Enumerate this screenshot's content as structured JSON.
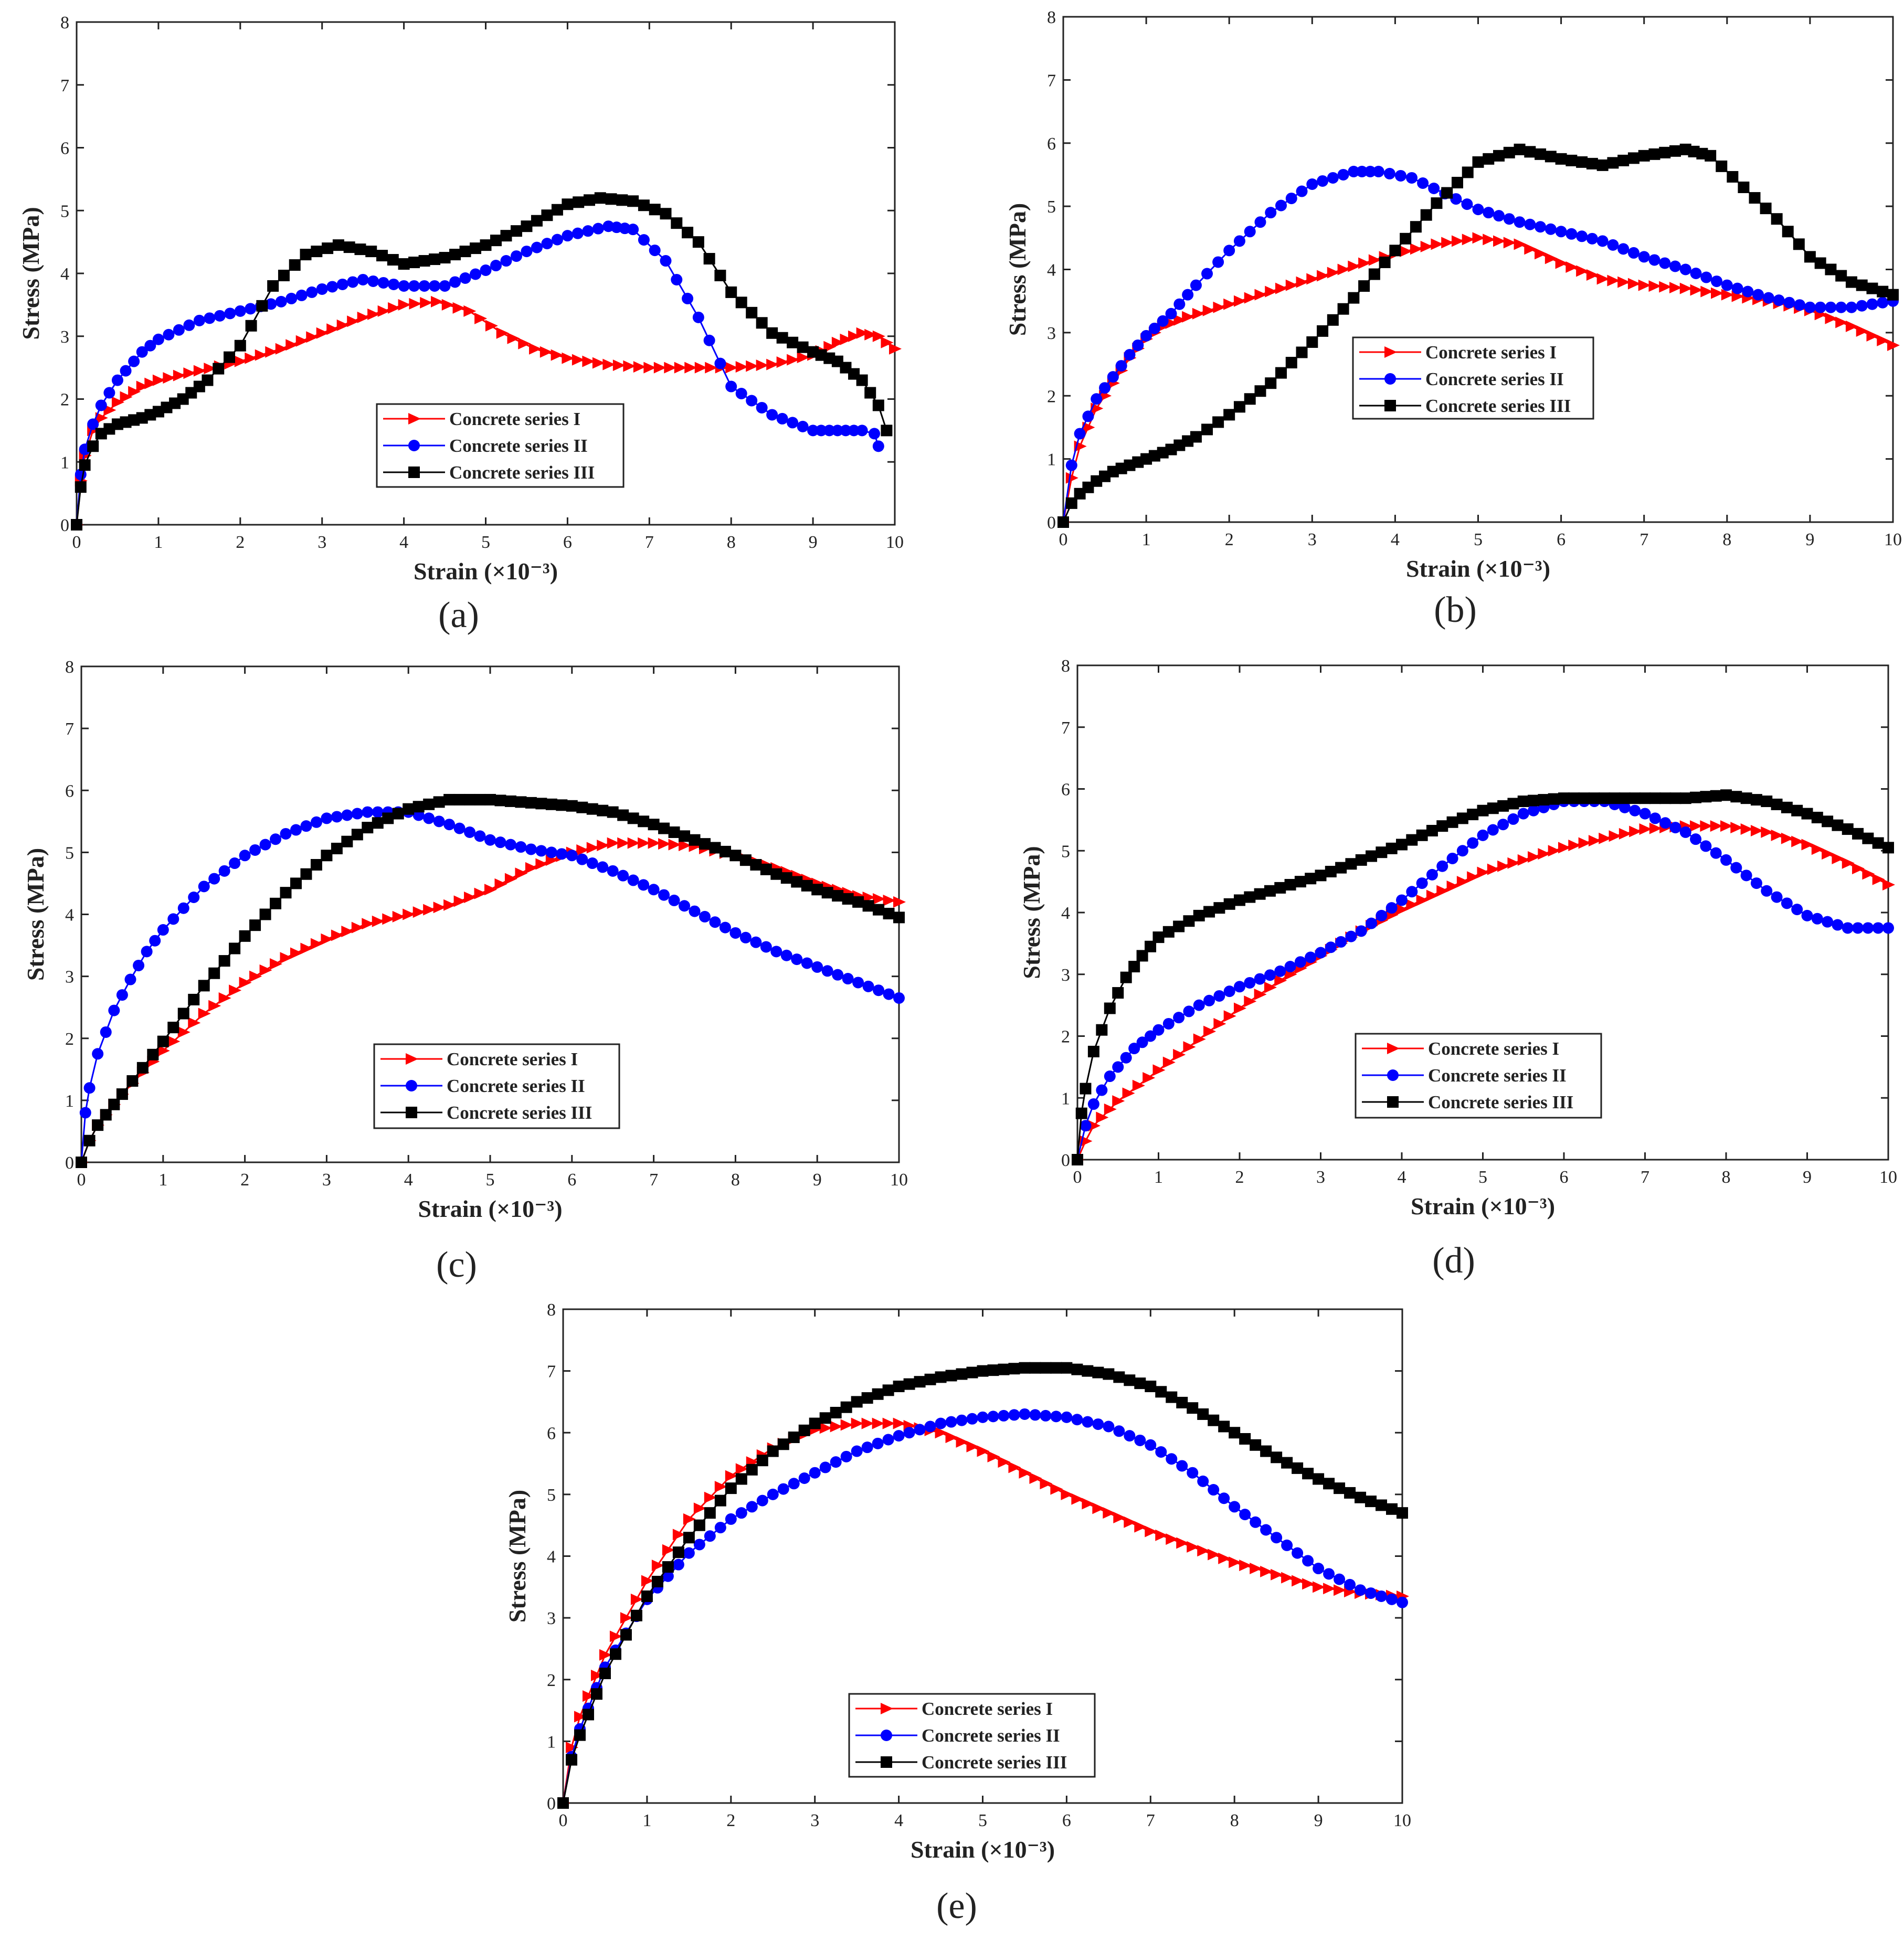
{
  "figure": {
    "panels": [
      "(a)",
      "(b)",
      "(c)",
      "(d)",
      "(e)"
    ]
  },
  "chart_data": [
    {
      "type": "line",
      "panel": "(a)",
      "xlabel": "Strain (×10⁻³)",
      "ylabel": "Stress (MPa)",
      "xlim": [
        0,
        10
      ],
      "ylim": [
        0,
        8
      ],
      "xticks": [
        0,
        1,
        2,
        3,
        4,
        5,
        6,
        7,
        8,
        9,
        10
      ],
      "yticks": [
        0,
        1,
        2,
        3,
        4,
        5,
        6,
        7,
        8
      ],
      "grid": false,
      "legend_position": "bottom-center",
      "series": [
        {
          "name": "Concrete series I",
          "color": "#ff0000",
          "marker": "triangle-right",
          "x": [
            0,
            0.05,
            0.1,
            0.2,
            0.3,
            0.5,
            0.8,
            1,
            1.5,
            2,
            2.5,
            3,
            3.5,
            4,
            4.4,
            4.8,
            5.2,
            5.6,
            6,
            6.5,
            7,
            7.5,
            8,
            8.5,
            9,
            9.3,
            9.6,
            9.8,
            10
          ],
          "y": [
            0,
            0.7,
            1.1,
            1.5,
            1.7,
            1.95,
            2.2,
            2.3,
            2.45,
            2.6,
            2.8,
            3.05,
            3.3,
            3.5,
            3.55,
            3.4,
            3.05,
            2.8,
            2.65,
            2.55,
            2.5,
            2.5,
            2.5,
            2.55,
            2.7,
            2.9,
            3.05,
            3.0,
            2.8
          ]
        },
        {
          "name": "Concrete series II",
          "color": "#0000ff",
          "marker": "circle",
          "x": [
            0,
            0.05,
            0.1,
            0.2,
            0.3,
            0.5,
            0.8,
            1,
            1.5,
            2,
            2.5,
            3,
            3.5,
            4,
            4.5,
            5,
            5.5,
            6,
            6.5,
            6.8,
            7.2,
            7.6,
            8,
            8.5,
            9,
            9.3,
            9.6,
            9.75,
            9.8
          ],
          "y": [
            0,
            0.8,
            1.2,
            1.6,
            1.9,
            2.3,
            2.75,
            2.95,
            3.25,
            3.4,
            3.55,
            3.75,
            3.9,
            3.8,
            3.8,
            4.05,
            4.35,
            4.6,
            4.75,
            4.7,
            4.2,
            3.3,
            2.2,
            1.75,
            1.5,
            1.5,
            1.5,
            1.45,
            1.25
          ]
        },
        {
          "name": "Concrete series III",
          "color": "#000000",
          "marker": "square",
          "x": [
            0,
            0.05,
            0.1,
            0.2,
            0.3,
            0.5,
            0.8,
            1,
            1.3,
            1.6,
            2,
            2.4,
            2.8,
            3.2,
            3.6,
            4,
            4.5,
            5,
            5.5,
            6,
            6.4,
            6.8,
            7.2,
            7.6,
            8,
            8.5,
            9,
            9.3,
            9.6,
            9.8,
            9.9
          ],
          "y": [
            0,
            0.6,
            0.95,
            1.25,
            1.45,
            1.6,
            1.7,
            1.8,
            2.0,
            2.3,
            2.85,
            3.8,
            4.3,
            4.45,
            4.35,
            4.15,
            4.25,
            4.45,
            4.75,
            5.1,
            5.2,
            5.15,
            4.95,
            4.5,
            3.7,
            3.05,
            2.75,
            2.6,
            2.3,
            1.9,
            1.5
          ]
        }
      ]
    },
    {
      "type": "line",
      "panel": "(b)",
      "xlabel": "Strain (×10⁻³)",
      "ylabel": "Stress (MPa)",
      "xlim": [
        0,
        10
      ],
      "ylim": [
        0,
        8
      ],
      "xticks": [
        0,
        1,
        2,
        3,
        4,
        5,
        6,
        7,
        8,
        9,
        10
      ],
      "yticks": [
        0,
        1,
        2,
        3,
        4,
        5,
        6,
        7,
        8
      ],
      "grid": false,
      "legend_position": "center",
      "series": [
        {
          "name": "Concrete series I",
          "color": "#ff0000",
          "marker": "triangle-right",
          "x": [
            0,
            0.1,
            0.2,
            0.4,
            0.6,
            0.8,
            1,
            1.2,
            1.5,
            2,
            2.5,
            3,
            3.5,
            4,
            4.5,
            5,
            5.5,
            6,
            6.5,
            7,
            7.5,
            8,
            8.5,
            9,
            9.5,
            10
          ],
          "y": [
            0,
            0.7,
            1.2,
            1.8,
            2.2,
            2.6,
            2.9,
            3.1,
            3.25,
            3.45,
            3.65,
            3.85,
            4.05,
            4.25,
            4.4,
            4.5,
            4.4,
            4.1,
            3.85,
            3.75,
            3.7,
            3.6,
            3.5,
            3.35,
            3.1,
            2.8
          ]
        },
        {
          "name": "Concrete series II",
          "color": "#0000ff",
          "marker": "circle",
          "x": [
            0,
            0.1,
            0.2,
            0.4,
            0.6,
            0.8,
            1,
            1.3,
            1.6,
            2,
            2.5,
            3,
            3.5,
            3.8,
            4.2,
            4.6,
            5,
            5.5,
            6,
            6.5,
            7,
            7.5,
            8,
            8.5,
            9,
            9.5,
            10
          ],
          "y": [
            0,
            0.9,
            1.4,
            1.95,
            2.3,
            2.65,
            2.95,
            3.3,
            3.75,
            4.3,
            4.9,
            5.35,
            5.55,
            5.55,
            5.45,
            5.2,
            4.95,
            4.75,
            4.6,
            4.45,
            4.2,
            4.0,
            3.75,
            3.55,
            3.4,
            3.4,
            3.5
          ]
        },
        {
          "name": "Concrete series III",
          "color": "#000000",
          "marker": "square",
          "x": [
            0,
            0.1,
            0.2,
            0.4,
            0.6,
            0.8,
            1,
            1.3,
            1.6,
            2,
            2.5,
            3,
            3.5,
            4,
            4.5,
            5,
            5.5,
            6,
            6.5,
            7,
            7.5,
            7.8,
            8.2,
            8.6,
            9,
            9.5,
            10
          ],
          "y": [
            0,
            0.3,
            0.45,
            0.65,
            0.8,
            0.9,
            1.0,
            1.15,
            1.35,
            1.7,
            2.2,
            2.85,
            3.55,
            4.3,
            5.05,
            5.7,
            5.9,
            5.75,
            5.65,
            5.8,
            5.9,
            5.8,
            5.3,
            4.8,
            4.2,
            3.8,
            3.6
          ]
        }
      ]
    },
    {
      "type": "line",
      "panel": "(c)",
      "xlabel": "Strain (×10⁻³)",
      "ylabel": "Stress (MPa)",
      "xlim": [
        0,
        10
      ],
      "ylim": [
        0,
        8
      ],
      "xticks": [
        0,
        1,
        2,
        3,
        4,
        5,
        6,
        7,
        8,
        9,
        10
      ],
      "yticks": [
        0,
        1,
        2,
        3,
        4,
        5,
        6,
        7,
        8
      ],
      "grid": false,
      "legend_position": "bottom-center",
      "series": [
        {
          "name": "Concrete series I",
          "color": "#ff0000",
          "marker": "triangle-right",
          "x": [
            0,
            0.1,
            0.2,
            0.5,
            1,
            1.5,
            2,
            2.5,
            3,
            3.5,
            4,
            4.5,
            5,
            5.5,
            6,
            6.5,
            7,
            7.5,
            8,
            8.5,
            9,
            9.5,
            10
          ],
          "y": [
            0,
            0.35,
            0.6,
            1.1,
            1.8,
            2.4,
            2.9,
            3.3,
            3.6,
            3.85,
            4.0,
            4.15,
            4.4,
            4.75,
            5.0,
            5.15,
            5.15,
            5.1,
            4.95,
            4.75,
            4.5,
            4.3,
            4.2
          ]
        },
        {
          "name": "Concrete series II",
          "color": "#0000ff",
          "marker": "circle",
          "x": [
            0,
            0.05,
            0.1,
            0.2,
            0.4,
            0.6,
            0.8,
            1,
            1.5,
            2,
            2.5,
            3,
            3.5,
            4,
            4.5,
            5,
            5.5,
            6,
            6.5,
            7,
            7.5,
            8,
            8.5,
            9,
            9.5,
            10
          ],
          "y": [
            0,
            0.8,
            1.2,
            1.75,
            2.45,
            2.95,
            3.4,
            3.75,
            4.45,
            4.95,
            5.3,
            5.55,
            5.65,
            5.65,
            5.45,
            5.2,
            5.05,
            4.95,
            4.7,
            4.4,
            4.05,
            3.7,
            3.4,
            3.15,
            2.9,
            2.65
          ]
        },
        {
          "name": "Concrete series III",
          "color": "#000000",
          "marker": "square",
          "x": [
            0,
            0.1,
            0.2,
            0.5,
            1,
            1.5,
            2,
            2.5,
            3,
            3.5,
            4,
            4.5,
            5,
            5.5,
            6,
            6.5,
            7,
            7.5,
            8,
            8.5,
            9,
            9.5,
            10
          ],
          "y": [
            0,
            0.35,
            0.6,
            1.1,
            1.95,
            2.85,
            3.65,
            4.35,
            4.95,
            5.4,
            5.7,
            5.85,
            5.85,
            5.8,
            5.75,
            5.65,
            5.45,
            5.2,
            4.95,
            4.65,
            4.4,
            4.2,
            3.95
          ]
        }
      ]
    },
    {
      "type": "line",
      "panel": "(d)",
      "xlabel": "Strain (×10⁻³)",
      "ylabel": "Stress (MPa)",
      "xlim": [
        0,
        10
      ],
      "ylim": [
        0,
        8
      ],
      "xticks": [
        0,
        1,
        2,
        3,
        4,
        5,
        6,
        7,
        8,
        9,
        10
      ],
      "yticks": [
        0,
        1,
        2,
        3,
        4,
        5,
        6,
        7,
        8
      ],
      "grid": false,
      "legend_position": "bottom-center",
      "series": [
        {
          "name": "Concrete series  I",
          "color": "#ff0000",
          "marker": "triangle-right",
          "x": [
            0,
            0.1,
            0.2,
            0.5,
            1,
            1.5,
            2,
            2.5,
            3,
            3.5,
            4,
            4.5,
            5,
            5.5,
            6,
            6.5,
            7,
            7.5,
            8,
            8.5,
            9,
            9.5,
            10
          ],
          "y": [
            0,
            0.3,
            0.55,
            0.95,
            1.45,
            1.95,
            2.45,
            2.9,
            3.3,
            3.7,
            4.05,
            4.35,
            4.65,
            4.85,
            5.05,
            5.2,
            5.35,
            5.4,
            5.4,
            5.3,
            5.1,
            4.8,
            4.45
          ]
        },
        {
          "name": "Concrete series  II",
          "color": "#0000ff",
          "marker": "circle",
          "x": [
            0,
            0.1,
            0.2,
            0.4,
            0.7,
            1,
            1.5,
            2,
            2.5,
            3,
            3.5,
            4,
            4.5,
            5,
            5.5,
            6,
            6.5,
            7,
            7.5,
            8,
            8.5,
            9,
            9.5,
            10
          ],
          "y": [
            0,
            0.55,
            0.9,
            1.35,
            1.8,
            2.1,
            2.5,
            2.8,
            3.05,
            3.35,
            3.7,
            4.2,
            4.75,
            5.25,
            5.6,
            5.8,
            5.8,
            5.6,
            5.3,
            4.85,
            4.35,
            3.95,
            3.75,
            3.75
          ]
        },
        {
          "name": "Concrete series  III",
          "color": "#000000",
          "marker": "square",
          "x": [
            0,
            0.05,
            0.1,
            0.2,
            0.4,
            0.6,
            0.8,
            1,
            1.5,
            2,
            2.5,
            3,
            3.5,
            4,
            4.5,
            5,
            5.5,
            6,
            6.5,
            7,
            7.5,
            8,
            8.5,
            9,
            9.5,
            10
          ],
          "y": [
            0,
            0.75,
            1.15,
            1.75,
            2.45,
            2.95,
            3.3,
            3.6,
            3.95,
            4.2,
            4.4,
            4.6,
            4.85,
            5.1,
            5.4,
            5.65,
            5.8,
            5.85,
            5.85,
            5.85,
            5.85,
            5.9,
            5.8,
            5.6,
            5.35,
            5.05
          ]
        }
      ]
    },
    {
      "type": "line",
      "panel": "(e)",
      "xlabel": "Strain (×10⁻³)",
      "ylabel": "Stress (MPa)",
      "xlim": [
        0,
        10
      ],
      "ylim": [
        0,
        8
      ],
      "xticks": [
        0,
        1,
        2,
        3,
        4,
        5,
        6,
        7,
        8,
        9,
        10
      ],
      "yticks": [
        0,
        1,
        2,
        3,
        4,
        5,
        6,
        7,
        8
      ],
      "grid": false,
      "legend_position": "bottom-center",
      "series": [
        {
          "name": "Concrete series I",
          "color": "#ff0000",
          "marker": "triangle-right",
          "x": [
            0,
            0.1,
            0.2,
            0.5,
            1,
            1.5,
            2,
            2.5,
            3,
            3.5,
            4,
            4.5,
            5,
            5.5,
            6,
            6.5,
            7,
            7.5,
            8,
            8.5,
            9,
            9.5,
            10
          ],
          "y": [
            0,
            0.9,
            1.4,
            2.4,
            3.6,
            4.6,
            5.3,
            5.75,
            6.05,
            6.15,
            6.15,
            6.0,
            5.7,
            5.35,
            5.0,
            4.7,
            4.4,
            4.15,
            3.9,
            3.7,
            3.5,
            3.4,
            3.35
          ]
        },
        {
          "name": "Concrete series II",
          "color": "#0000ff",
          "marker": "circle",
          "x": [
            0,
            0.1,
            0.2,
            0.5,
            1,
            1.5,
            2,
            2.5,
            3,
            3.5,
            4,
            4.5,
            5,
            5.5,
            6,
            6.5,
            7,
            7.5,
            8,
            8.5,
            9,
            9.5,
            10
          ],
          "y": [
            0,
            0.75,
            1.2,
            2.2,
            3.3,
            4.05,
            4.6,
            5.0,
            5.35,
            5.7,
            5.95,
            6.15,
            6.25,
            6.3,
            6.25,
            6.1,
            5.8,
            5.35,
            4.8,
            4.3,
            3.8,
            3.45,
            3.25
          ]
        },
        {
          "name": "Concrete series III",
          "color": "#000000",
          "marker": "square",
          "x": [
            0,
            0.1,
            0.2,
            0.5,
            1,
            1.5,
            2,
            2.5,
            3,
            3.5,
            4,
            4.5,
            5,
            5.5,
            6,
            6.5,
            7,
            7.5,
            8,
            8.5,
            9,
            9.5,
            10
          ],
          "y": [
            0,
            0.7,
            1.1,
            2.1,
            3.35,
            4.3,
            5.1,
            5.7,
            6.15,
            6.5,
            6.75,
            6.9,
            7.0,
            7.05,
            7.05,
            6.95,
            6.75,
            6.4,
            6.0,
            5.6,
            5.25,
            4.95,
            4.7
          ]
        }
      ]
    }
  ]
}
